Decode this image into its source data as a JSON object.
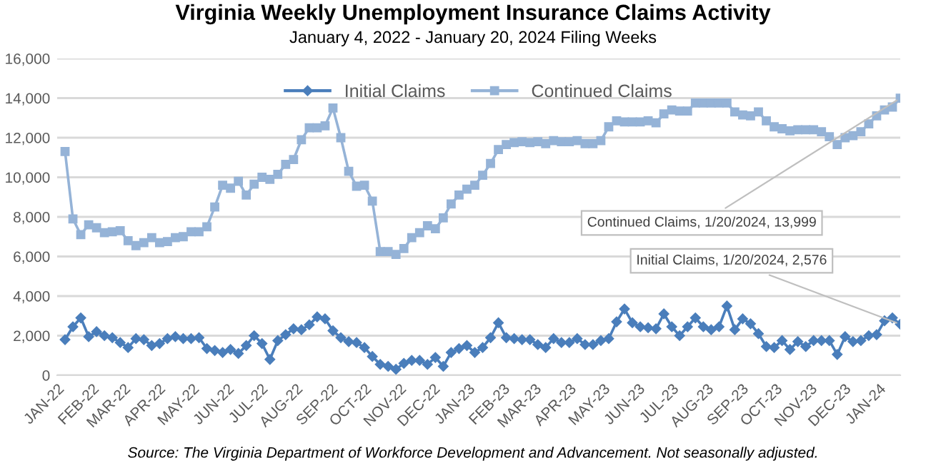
{
  "chart_data": {
    "type": "line",
    "title": "Virginia Weekly Unemployment Insurance Claims Activity",
    "subtitle": "January 4, 2022 - January 20, 2024 Filing Weeks",
    "x": [
      "2022-01-08",
      "2022-01-15",
      "2022-01-22",
      "2022-01-29",
      "2022-02-05",
      "2022-02-12",
      "2022-02-19",
      "2022-02-26",
      "2022-03-05",
      "2022-03-12",
      "2022-03-19",
      "2022-03-26",
      "2022-04-02",
      "2022-04-09",
      "2022-04-16",
      "2022-04-23",
      "2022-04-30",
      "2022-05-07",
      "2022-05-14",
      "2022-05-21",
      "2022-05-28",
      "2022-06-04",
      "2022-06-11",
      "2022-06-18",
      "2022-06-25",
      "2022-07-02",
      "2022-07-09",
      "2022-07-16",
      "2022-07-23",
      "2022-07-30",
      "2022-08-06",
      "2022-08-13",
      "2022-08-20",
      "2022-08-27",
      "2022-09-03",
      "2022-09-10",
      "2022-09-17",
      "2022-09-24",
      "2022-10-01",
      "2022-10-08",
      "2022-10-15",
      "2022-10-22",
      "2022-10-29",
      "2022-11-05",
      "2022-11-12",
      "2022-11-19",
      "2022-11-26",
      "2022-12-03",
      "2022-12-10",
      "2022-12-17",
      "2022-12-24",
      "2022-12-31",
      "2023-01-07",
      "2023-01-14",
      "2023-01-21",
      "2023-01-28",
      "2023-02-04",
      "2023-02-11",
      "2023-02-18",
      "2023-02-25",
      "2023-03-04",
      "2023-03-11",
      "2023-03-18",
      "2023-03-25",
      "2023-04-01",
      "2023-04-08",
      "2023-04-15",
      "2023-04-22",
      "2023-04-29",
      "2023-05-06",
      "2023-05-13",
      "2023-05-20",
      "2023-05-27",
      "2023-06-03",
      "2023-06-10",
      "2023-06-17",
      "2023-06-24",
      "2023-07-01",
      "2023-07-08",
      "2023-07-15",
      "2023-07-22",
      "2023-07-29",
      "2023-08-05",
      "2023-08-12",
      "2023-08-19",
      "2023-08-26",
      "2023-09-02",
      "2023-09-09",
      "2023-09-16",
      "2023-09-23",
      "2023-09-30",
      "2023-10-07",
      "2023-10-14",
      "2023-10-21",
      "2023-10-28",
      "2023-11-04",
      "2023-11-11",
      "2023-11-18",
      "2023-11-25",
      "2023-12-02",
      "2023-12-09",
      "2023-12-16",
      "2023-12-23",
      "2023-12-30",
      "2024-01-06",
      "2024-01-13",
      "2024-01-20"
    ],
    "series": [
      {
        "name": "Initial Claims",
        "color": "#4a7ebb",
        "marker": "diamond",
        "values": [
          1800,
          2450,
          2900,
          1950,
          2200,
          2000,
          1900,
          1650,
          1400,
          1850,
          1800,
          1500,
          1600,
          1850,
          1950,
          1850,
          1850,
          1900,
          1350,
          1250,
          1150,
          1300,
          1100,
          1500,
          2000,
          1600,
          800,
          1750,
          2050,
          2350,
          2300,
          2550,
          2950,
          2850,
          2250,
          1900,
          1700,
          1650,
          1400,
          950,
          550,
          450,
          300,
          600,
          750,
          750,
          550,
          900,
          450,
          1150,
          1350,
          1500,
          1150,
          1400,
          1900,
          2650,
          1900,
          1850,
          1800,
          1800,
          1550,
          1400,
          1850,
          1650,
          1650,
          1850,
          1550,
          1550,
          1750,
          1850,
          2700,
          3350,
          2650,
          2450,
          2400,
          2350,
          3100,
          2450,
          2000,
          2450,
          2900,
          2450,
          2300,
          2450,
          3500,
          2300,
          2850,
          2600,
          2100,
          1450,
          1400,
          1750,
          1300,
          1700,
          1450,
          1750,
          1750,
          1750,
          1050,
          1950,
          1700,
          1750,
          2000,
          2050,
          2750,
          2900,
          2576
        ]
      },
      {
        "name": "Continued Claims",
        "color": "#95b3d7",
        "marker": "square",
        "values": [
          11300,
          7900,
          7100,
          7600,
          7450,
          7200,
          7250,
          7300,
          6800,
          6550,
          6700,
          6950,
          6700,
          6750,
          6950,
          7000,
          7250,
          7250,
          7500,
          8500,
          9600,
          9450,
          9800,
          9100,
          9650,
          10000,
          9900,
          10150,
          10650,
          10900,
          11900,
          12500,
          12500,
          12600,
          13500,
          12000,
          10300,
          9550,
          9600,
          8800,
          6250,
          6250,
          6100,
          6400,
          6950,
          7200,
          7550,
          7400,
          7950,
          8650,
          9100,
          9400,
          9600,
          10100,
          10700,
          11400,
          11650,
          11750,
          11800,
          11750,
          11800,
          11700,
          11850,
          11800,
          11800,
          11850,
          11700,
          11700,
          11850,
          12550,
          12850,
          12800,
          12800,
          12800,
          12850,
          12750,
          13200,
          13400,
          13350,
          13350,
          13750,
          13750,
          13750,
          13750,
          13750,
          13300,
          13150,
          13100,
          13300,
          12850,
          12550,
          12450,
          12350,
          12400,
          12400,
          12400,
          12300,
          12050,
          11650,
          12000,
          12100,
          12300,
          12700,
          13100,
          13400,
          13550,
          13999
        ]
      }
    ],
    "xlim": [
      "2022-01-01",
      "2024-01-20"
    ],
    "xticks": [
      {
        "value": "2022-01-01",
        "label": "JAN-22"
      },
      {
        "value": "2022-02-01",
        "label": "FEB-22"
      },
      {
        "value": "2022-03-01",
        "label": "MAR-22"
      },
      {
        "value": "2022-04-01",
        "label": "APR-22"
      },
      {
        "value": "2022-05-01",
        "label": "MAY-22"
      },
      {
        "value": "2022-06-01",
        "label": "JUN-22"
      },
      {
        "value": "2022-07-01",
        "label": "JUL-22"
      },
      {
        "value": "2022-08-01",
        "label": "AUG-22"
      },
      {
        "value": "2022-09-01",
        "label": "SEP-22"
      },
      {
        "value": "2022-10-01",
        "label": "OCT-22"
      },
      {
        "value": "2022-11-01",
        "label": "NOV-22"
      },
      {
        "value": "2022-12-01",
        "label": "DEC-22"
      },
      {
        "value": "2023-01-01",
        "label": "JAN-23"
      },
      {
        "value": "2023-02-01",
        "label": "FEB-23"
      },
      {
        "value": "2023-03-01",
        "label": "MAR-23"
      },
      {
        "value": "2023-04-01",
        "label": "APR-23"
      },
      {
        "value": "2023-05-01",
        "label": "MAY-23"
      },
      {
        "value": "2023-06-01",
        "label": "JUN-23"
      },
      {
        "value": "2023-07-01",
        "label": "JUL-23"
      },
      {
        "value": "2023-08-01",
        "label": "AUG-23"
      },
      {
        "value": "2023-09-01",
        "label": "SEP-23"
      },
      {
        "value": "2023-10-01",
        "label": "OCT-23"
      },
      {
        "value": "2023-11-01",
        "label": "NOV-23"
      },
      {
        "value": "2023-12-01",
        "label": "DEC-23"
      },
      {
        "value": "2024-01-01",
        "label": "JAN-24"
      }
    ],
    "ylim": [
      0,
      16000
    ],
    "yticks": [
      {
        "value": 0,
        "label": "0"
      },
      {
        "value": 2000,
        "label": "2,000"
      },
      {
        "value": 4000,
        "label": "4,000"
      },
      {
        "value": 6000,
        "label": "6,000"
      },
      {
        "value": 8000,
        "label": "8,000"
      },
      {
        "value": 10000,
        "label": "10,000"
      },
      {
        "value": 12000,
        "label": "12,000"
      },
      {
        "value": 14000,
        "label": "14,000"
      },
      {
        "value": 16000,
        "label": "16,000"
      }
    ],
    "grid": "y",
    "legend": "top",
    "line_style": "solid",
    "annotations": [
      {
        "text": "Continued Claims, 1/20/2024, 13,999",
        "x": "2024-01-20",
        "y": 13999
      },
      {
        "text": "Initial Claims, 1/20/2024, 2,576",
        "x": "2024-01-20",
        "y": 2576
      },
      "Source: The Virginia Department of Workforce Development and Advancement. Not seasonally adjusted."
    ]
  }
}
